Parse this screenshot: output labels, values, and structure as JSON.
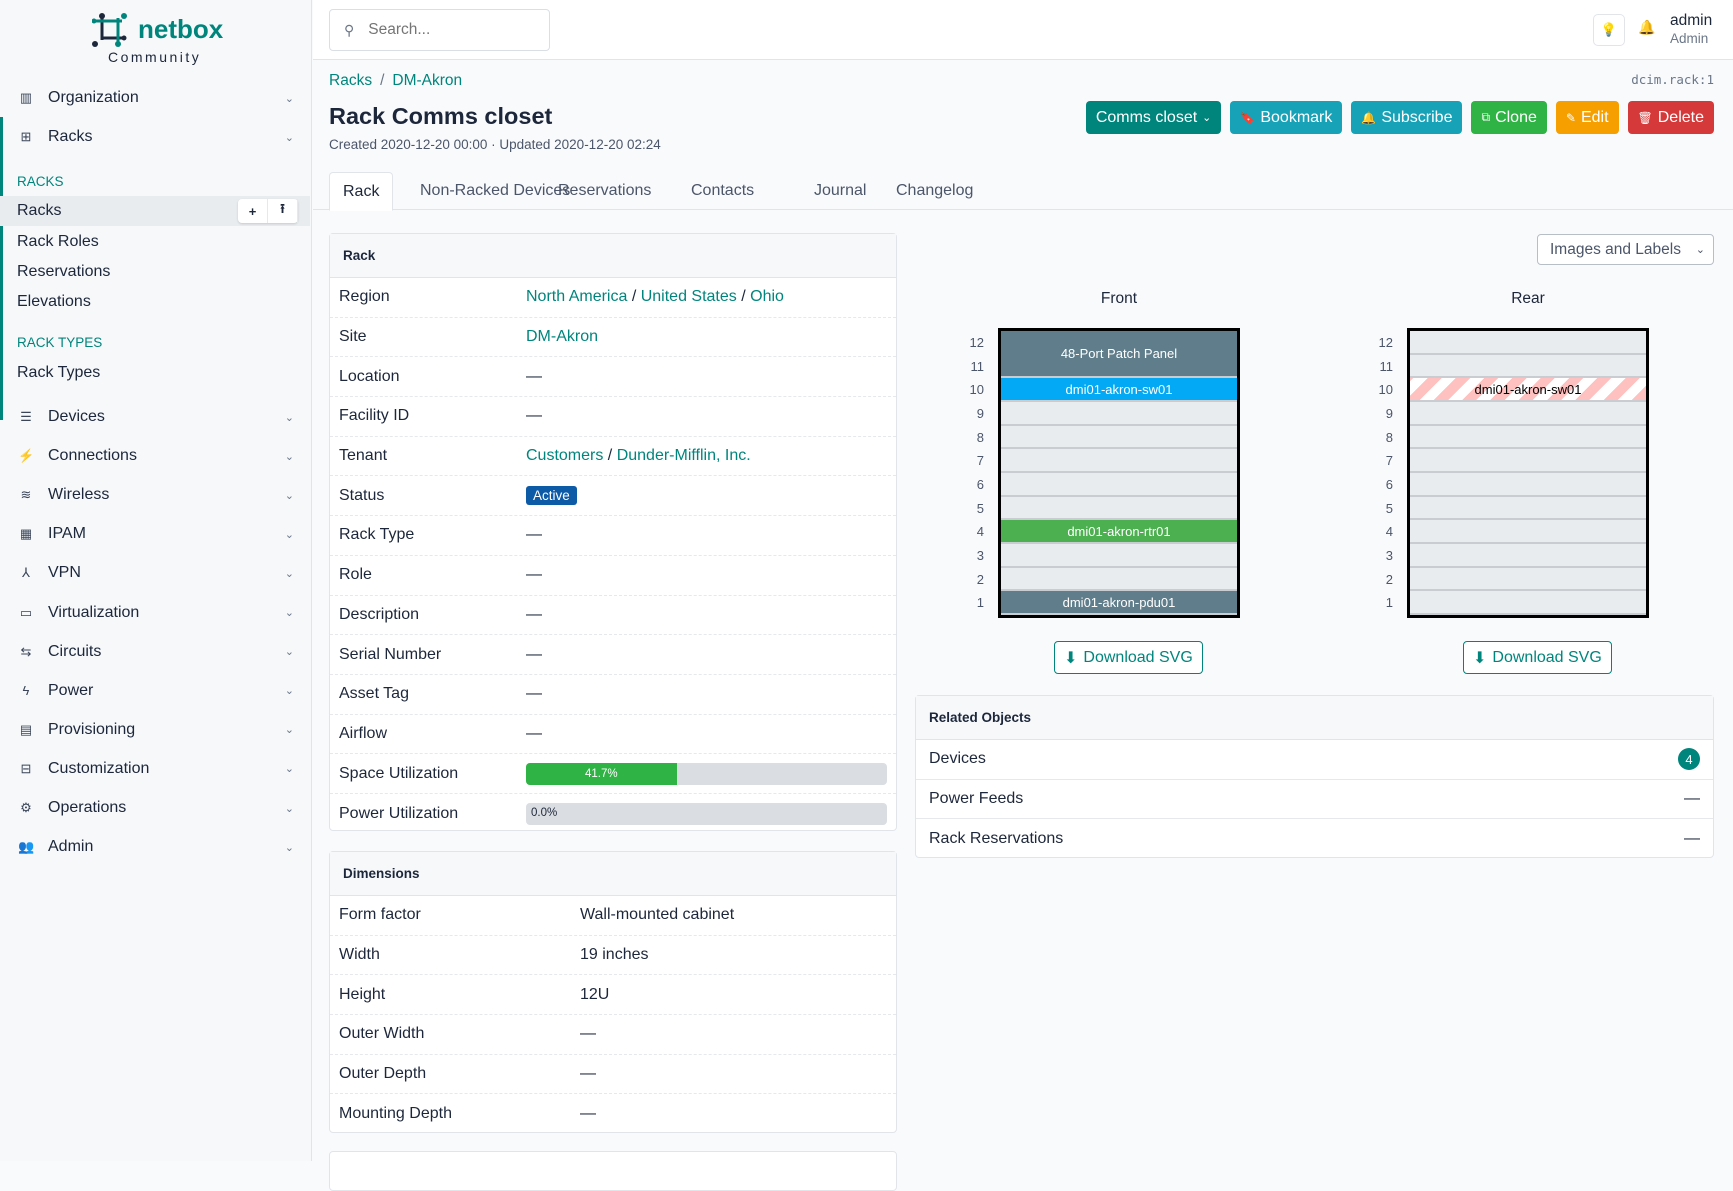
{
  "brand": {
    "name": "netbox",
    "edition": "Community"
  },
  "sidebar": {
    "top_items": [
      {
        "label": "Organization",
        "icon": "building-icon"
      },
      {
        "label": "Racks",
        "icon": "rack-icon"
      }
    ],
    "racks_section": {
      "heading": "RACKS",
      "items": [
        "Racks",
        "Rack Roles",
        "Reservations",
        "Elevations"
      ]
    },
    "rack_types_section": {
      "heading": "RACK TYPES",
      "items": [
        "Rack Types"
      ]
    },
    "items": [
      {
        "label": "Devices",
        "icon": "server-icon"
      },
      {
        "label": "Connections",
        "icon": "plug-icon"
      },
      {
        "label": "Wireless",
        "icon": "wifi-icon"
      },
      {
        "label": "IPAM",
        "icon": "counter-icon"
      },
      {
        "label": "VPN",
        "icon": "tunnel-icon"
      },
      {
        "label": "Virtualization",
        "icon": "monitor-icon"
      },
      {
        "label": "Circuits",
        "icon": "transit-icon"
      },
      {
        "label": "Power",
        "icon": "flash-icon"
      },
      {
        "label": "Provisioning",
        "icon": "file-icon"
      },
      {
        "label": "Customization",
        "icon": "toolbox-icon"
      },
      {
        "label": "Operations",
        "icon": "cogs-icon"
      },
      {
        "label": "Admin",
        "icon": "users-icon"
      }
    ]
  },
  "header": {
    "search_placeholder": "Search...",
    "user": {
      "name": "admin",
      "role": "Admin"
    }
  },
  "breadcrumb": [
    "Racks",
    "DM-Akron"
  ],
  "object_id": "dcim.rack:1",
  "page": {
    "title": "Rack Comms closet",
    "meta": "Created 2020-12-20 00:00 · Updated 2020-12-20 02:24"
  },
  "actions": [
    {
      "label": "Comms closet",
      "icon": "",
      "color": "#00857d",
      "caret": "⌄"
    },
    {
      "label": "Bookmark",
      "icon": "🔖",
      "color": "#17a2b8"
    },
    {
      "label": "Subscribe",
      "icon": "🔔",
      "color": "#17a2b8"
    },
    {
      "label": "Clone",
      "icon": "⧉",
      "color": "#2fb344"
    },
    {
      "label": "Edit",
      "icon": "✎",
      "color": "#f59f00"
    },
    {
      "label": "Delete",
      "icon": "🗑",
      "color": "#d63939"
    }
  ],
  "tabs": [
    "Rack",
    "Non-Racked Devices",
    "Reservations",
    "Contacts",
    "Journal",
    "Changelog"
  ],
  "rack_card": {
    "title": "Rack",
    "region": [
      "North America",
      "United States",
      "Ohio"
    ],
    "site": "DM-Akron",
    "tenant": [
      "Customers",
      "Dunder-Mifflin, Inc."
    ],
    "status": "Active",
    "status_color": "#0d5aa7",
    "rows": [
      {
        "k": "Region"
      },
      {
        "k": "Site"
      },
      {
        "k": "Location",
        "v": "—"
      },
      {
        "k": "Facility ID",
        "v": "—"
      },
      {
        "k": "Tenant"
      },
      {
        "k": "Status"
      },
      {
        "k": "Rack Type",
        "v": "—"
      },
      {
        "k": "Role",
        "v": "—"
      },
      {
        "k": "Description",
        "v": "—"
      },
      {
        "k": "Serial Number",
        "v": "—"
      },
      {
        "k": "Asset Tag",
        "v": "—"
      },
      {
        "k": "Airflow",
        "v": "—"
      },
      {
        "k": "Space Utilization"
      },
      {
        "k": "Power Utilization"
      }
    ],
    "space_utilization": {
      "percent": 41.7,
      "label": "41.7%"
    },
    "power_utilization": {
      "percent": 0.0,
      "label": "0.0%"
    }
  },
  "dimensions": {
    "title": "Dimensions",
    "rows": [
      {
        "k": "Form factor",
        "v": "Wall-mounted cabinet"
      },
      {
        "k": "Width",
        "v": "19 inches"
      },
      {
        "k": "Height",
        "v": "12U"
      },
      {
        "k": "Outer Width",
        "v": "—"
      },
      {
        "k": "Outer Depth",
        "v": "—"
      },
      {
        "k": "Mounting Depth",
        "v": "—"
      }
    ]
  },
  "elevation": {
    "view_select": "Images and Labels",
    "units": 12,
    "faces": [
      {
        "label": "Front",
        "download": "Download SVG",
        "devices": [
          {
            "name": "48-Port Patch Panel",
            "position": 11,
            "height": 2,
            "color": "#607d8b",
            "text_color": "#ffffff"
          },
          {
            "name": "dmi01-akron-sw01",
            "position": 10,
            "height": 1,
            "color": "#03a9f4",
            "text_color": "#ffffff"
          },
          {
            "name": "dmi01-akron-rtr01",
            "position": 4,
            "height": 1,
            "color": "#4caf50",
            "text_color": "#ffffff"
          },
          {
            "name": "dmi01-akron-pdu01",
            "position": 1,
            "height": 1,
            "color": "#607d8b",
            "text_color": "#ffffff"
          }
        ]
      },
      {
        "label": "Rear",
        "download": "Download SVG",
        "devices": [
          {
            "name": "dmi01-akron-sw01",
            "position": 10,
            "height": 1,
            "color": "striped",
            "text_color": "#000000"
          }
        ]
      }
    ]
  },
  "related": {
    "title": "Related Objects",
    "rows": [
      {
        "label": "Devices",
        "count": "4"
      },
      {
        "label": "Power Feeds",
        "count": "—"
      },
      {
        "label": "Rack Reservations",
        "count": "—"
      }
    ]
  }
}
